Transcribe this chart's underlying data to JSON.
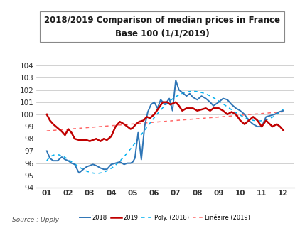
{
  "title": "2018/2019 Comparison of median prices in France\nBase 100 (1/1/2019)",
  "source": "Source : Upply",
  "x_labels": [
    "01",
    "02",
    "03",
    "04",
    "05",
    "06",
    "07",
    "08",
    "09",
    "10",
    "11",
    "12"
  ],
  "color_2018": "#2E75B6",
  "color_2019": "#C00000",
  "color_poly2018": "#00B0F0",
  "color_lin2019": "#FF6666",
  "ylim": [
    94,
    104
  ],
  "yticks": [
    94,
    95,
    96,
    97,
    98,
    99,
    100,
    101,
    102,
    103,
    104
  ],
  "bg_color": "#FFFFFF",
  "grid_color": "#BFBFBF",
  "y2018_x": [
    1.0,
    1.15,
    1.3,
    1.5,
    1.7,
    1.85,
    2.0,
    2.15,
    2.3,
    2.5,
    2.7,
    2.85,
    3.0,
    3.15,
    3.3,
    3.5,
    3.65,
    3.8,
    4.0,
    4.2,
    4.4,
    4.6,
    4.75,
    4.9,
    5.0,
    5.1,
    5.25,
    5.4,
    5.55,
    5.7,
    5.85,
    6.0,
    6.15,
    6.3,
    6.5,
    6.7,
    6.85,
    7.0,
    7.15,
    7.3,
    7.5,
    7.65,
    7.8,
    8.0,
    8.2,
    8.4,
    8.6,
    8.75,
    9.0,
    9.2,
    9.4,
    9.6,
    9.8,
    10.0,
    10.2,
    10.4,
    10.6,
    10.8,
    11.0,
    11.2,
    11.4,
    11.6,
    11.8,
    12.0
  ],
  "y2018_v": [
    97.0,
    96.4,
    96.2,
    96.2,
    96.5,
    96.3,
    96.2,
    96.0,
    95.9,
    95.2,
    95.5,
    95.7,
    95.8,
    95.9,
    95.8,
    95.6,
    95.5,
    95.5,
    95.9,
    96.0,
    96.1,
    95.9,
    96.0,
    96.0,
    96.1,
    96.4,
    98.5,
    96.3,
    99.0,
    100.2,
    100.8,
    101.0,
    100.5,
    101.2,
    100.8,
    101.3,
    100.3,
    102.8,
    102.0,
    101.8,
    101.5,
    101.7,
    101.4,
    101.2,
    101.5,
    101.3,
    101.0,
    100.7,
    101.0,
    101.3,
    101.2,
    100.8,
    100.5,
    100.3,
    100.0,
    99.5,
    99.2,
    99.0,
    99.0,
    99.8,
    99.9,
    100.0,
    100.2,
    100.3
  ],
  "y2019_x": [
    1.0,
    1.15,
    1.3,
    1.5,
    1.7,
    1.85,
    2.0,
    2.15,
    2.3,
    2.5,
    2.7,
    2.85,
    3.0,
    3.15,
    3.3,
    3.5,
    3.65,
    3.8,
    4.0,
    4.2,
    4.4,
    4.6,
    4.75,
    4.9,
    5.0,
    5.15,
    5.3,
    5.5,
    5.65,
    5.8,
    6.0,
    6.2,
    6.4,
    6.6,
    6.75,
    7.0,
    7.15,
    7.3,
    7.5,
    7.65,
    7.8,
    8.0,
    8.2,
    8.4,
    8.6,
    8.75,
    9.0,
    9.2,
    9.4,
    9.6,
    9.8,
    10.0,
    10.2,
    10.4,
    10.6,
    10.8,
    11.0,
    11.2,
    11.5,
    11.7,
    11.85,
    12.0
  ],
  "y2019_v": [
    100.0,
    99.5,
    99.2,
    98.9,
    98.6,
    98.3,
    98.8,
    98.5,
    98.0,
    97.9,
    97.9,
    97.9,
    97.8,
    97.9,
    98.0,
    97.8,
    98.0,
    97.9,
    98.2,
    99.0,
    99.4,
    99.2,
    99.0,
    98.8,
    98.9,
    99.2,
    99.4,
    99.5,
    99.8,
    99.7,
    100.0,
    100.5,
    101.0,
    101.0,
    100.8,
    101.0,
    100.7,
    100.3,
    100.5,
    100.5,
    100.5,
    100.3,
    100.4,
    100.5,
    100.3,
    100.5,
    100.5,
    100.3,
    100.0,
    100.2,
    100.0,
    99.5,
    99.2,
    99.5,
    99.8,
    99.5,
    99.0,
    99.5,
    99.0,
    99.2,
    99.0,
    98.7
  ]
}
